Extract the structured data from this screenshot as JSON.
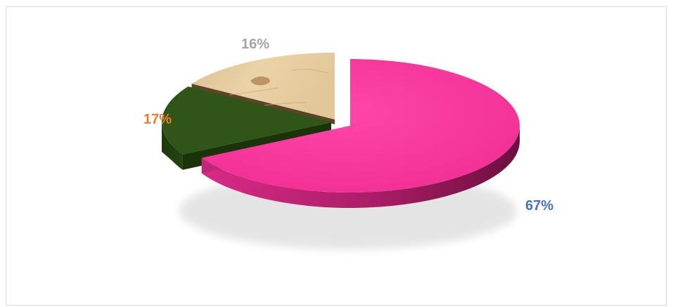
{
  "chart_data": {
    "type": "pie",
    "style": "3d-exploded",
    "legend": "none",
    "slices": [
      {
        "value": 67,
        "label": "67%",
        "color": "#f5359b",
        "label_color": "#4472c4"
      },
      {
        "value": 17,
        "label": "17%",
        "color": "#2f5519",
        "label_color": "#ed7d31"
      },
      {
        "value": 16,
        "label": "16%",
        "color": "#e3c79a",
        "label_color": "#a5a5a5"
      }
    ]
  }
}
